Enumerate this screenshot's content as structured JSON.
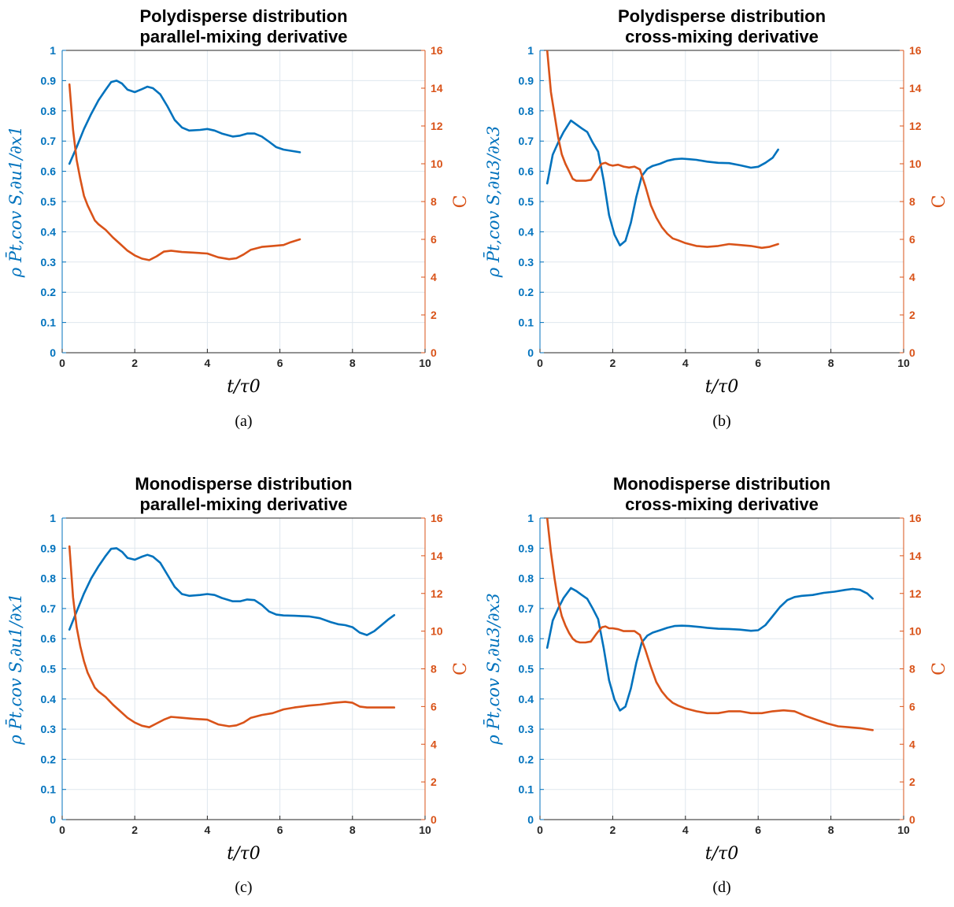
{
  "colors": {
    "left_series": "#0072BD",
    "right_series": "#D95319",
    "grid": "#dfe7ee",
    "axis": "#262626"
  },
  "chart_data": [
    {
      "type": "line",
      "panel_label": "(a)",
      "title": [
        "Polydisperse distribution",
        "parallel-mixing derivative"
      ],
      "xlabel": "t/τ0",
      "ylabel": "ρ P̄t,cov S,∂u1/∂x1",
      "y2label": "C",
      "xlim": [
        0,
        10
      ],
      "ylim": [
        0,
        1
      ],
      "y2lim": [
        0,
        16
      ],
      "xticks": [
        "0",
        "2",
        "4",
        "6",
        "8",
        "10"
      ],
      "yticks": [
        "0",
        "0.1",
        "0.2",
        "0.3",
        "0.4",
        "0.5",
        "0.6",
        "0.7",
        "0.8",
        "0.9",
        "1"
      ],
      "y2ticks": [
        "0",
        "2",
        "4",
        "6",
        "8",
        "10",
        "12",
        "14",
        "16"
      ],
      "grid": true,
      "series": [
        {
          "axis": "left",
          "x": [
            0.2,
            0.4,
            0.6,
            0.8,
            1.0,
            1.2,
            1.35,
            1.5,
            1.65,
            1.8,
            2.0,
            2.2,
            2.35,
            2.5,
            2.7,
            2.9,
            3.1,
            3.3,
            3.5,
            3.8,
            4.0,
            4.2,
            4.4,
            4.7,
            4.9,
            5.1,
            5.3,
            5.5,
            5.7,
            5.9,
            6.1,
            6.3,
            6.55
          ],
          "y": [
            0.625,
            0.68,
            0.74,
            0.79,
            0.835,
            0.87,
            0.895,
            0.9,
            0.89,
            0.87,
            0.862,
            0.872,
            0.88,
            0.875,
            0.855,
            0.815,
            0.77,
            0.745,
            0.735,
            0.737,
            0.74,
            0.735,
            0.725,
            0.715,
            0.718,
            0.725,
            0.725,
            0.715,
            0.698,
            0.68,
            0.672,
            0.668,
            0.663
          ]
        },
        {
          "axis": "right",
          "x": [
            0.2,
            0.3,
            0.4,
            0.5,
            0.6,
            0.7,
            0.8,
            0.9,
            1.0,
            1.2,
            1.4,
            1.6,
            1.8,
            2.0,
            2.2,
            2.4,
            2.6,
            2.8,
            3.0,
            3.3,
            3.6,
            4.0,
            4.3,
            4.6,
            4.8,
            5.0,
            5.2,
            5.5,
            5.8,
            6.1,
            6.3,
            6.55
          ],
          "y": [
            14.2,
            11.8,
            10.2,
            9.2,
            8.3,
            7.8,
            7.4,
            7.0,
            6.8,
            6.5,
            6.1,
            5.75,
            5.4,
            5.15,
            4.98,
            4.9,
            5.1,
            5.35,
            5.4,
            5.33,
            5.3,
            5.25,
            5.05,
            4.95,
            5.0,
            5.2,
            5.45,
            5.6,
            5.65,
            5.7,
            5.85,
            6.0
          ]
        }
      ]
    },
    {
      "type": "line",
      "panel_label": "(b)",
      "title": [
        "Polydisperse distribution",
        "cross-mixing derivative"
      ],
      "xlabel": "t/τ0",
      "ylabel": "ρ P̄t,cov S,∂u3/∂x3",
      "y2label": "C",
      "xlim": [
        0,
        10
      ],
      "ylim": [
        0,
        1
      ],
      "y2lim": [
        0,
        16
      ],
      "xticks": [
        "0",
        "2",
        "4",
        "6",
        "8",
        "10"
      ],
      "yticks": [
        "0",
        "0.1",
        "0.2",
        "0.3",
        "0.4",
        "0.5",
        "0.6",
        "0.7",
        "0.8",
        "0.9",
        "1"
      ],
      "y2ticks": [
        "0",
        "2",
        "4",
        "6",
        "8",
        "10",
        "12",
        "14",
        "16"
      ],
      "grid": true,
      "series": [
        {
          "axis": "left",
          "x": [
            0.2,
            0.35,
            0.5,
            0.65,
            0.85,
            1.0,
            1.15,
            1.3,
            1.45,
            1.6,
            1.75,
            1.9,
            2.05,
            2.2,
            2.35,
            2.5,
            2.65,
            2.8,
            2.95,
            3.1,
            3.3,
            3.5,
            3.7,
            3.9,
            4.1,
            4.3,
            4.6,
            4.9,
            5.2,
            5.5,
            5.8,
            6.0,
            6.2,
            6.4,
            6.55
          ],
          "y": [
            0.56,
            0.655,
            0.695,
            0.73,
            0.768,
            0.755,
            0.742,
            0.73,
            0.695,
            0.665,
            0.57,
            0.455,
            0.39,
            0.355,
            0.37,
            0.43,
            0.515,
            0.585,
            0.608,
            0.618,
            0.625,
            0.635,
            0.64,
            0.642,
            0.64,
            0.638,
            0.632,
            0.628,
            0.627,
            0.62,
            0.612,
            0.615,
            0.628,
            0.645,
            0.672
          ]
        },
        {
          "axis": "right",
          "x": [
            0.2,
            0.3,
            0.4,
            0.5,
            0.6,
            0.7,
            0.8,
            0.9,
            1.0,
            1.1,
            1.25,
            1.4,
            1.55,
            1.7,
            1.8,
            1.9,
            2.0,
            2.15,
            2.3,
            2.45,
            2.6,
            2.75,
            2.9,
            3.05,
            3.2,
            3.35,
            3.5,
            3.65,
            3.8,
            4.0,
            4.3,
            4.6,
            4.9,
            5.2,
            5.5,
            5.8,
            6.1,
            6.3,
            6.55
          ],
          "y": [
            16.0,
            13.8,
            12.6,
            11.4,
            10.5,
            10.0,
            9.6,
            9.2,
            9.1,
            9.1,
            9.1,
            9.15,
            9.6,
            10.0,
            10.05,
            9.95,
            9.9,
            9.95,
            9.85,
            9.8,
            9.85,
            9.7,
            8.8,
            7.8,
            7.15,
            6.65,
            6.3,
            6.05,
            5.95,
            5.8,
            5.65,
            5.6,
            5.65,
            5.75,
            5.7,
            5.65,
            5.55,
            5.6,
            5.75
          ]
        }
      ]
    },
    {
      "type": "line",
      "panel_label": "(c)",
      "title": [
        "Monodisperse distribution",
        "parallel-mixing derivative"
      ],
      "xlabel": "t/τ0",
      "ylabel": "ρ P̄t,cov S,∂u1/∂x1",
      "y2label": "C",
      "xlim": [
        0,
        10
      ],
      "ylim": [
        0,
        1
      ],
      "y2lim": [
        0,
        16
      ],
      "xticks": [
        "0",
        "2",
        "4",
        "6",
        "8",
        "10"
      ],
      "yticks": [
        "0",
        "0.1",
        "0.2",
        "0.3",
        "0.4",
        "0.5",
        "0.6",
        "0.7",
        "0.8",
        "0.9",
        "1"
      ],
      "y2ticks": [
        "0",
        "2",
        "4",
        "6",
        "8",
        "10",
        "12",
        "14",
        "16"
      ],
      "grid": true,
      "series": [
        {
          "axis": "left",
          "x": [
            0.2,
            0.4,
            0.6,
            0.8,
            1.0,
            1.2,
            1.35,
            1.5,
            1.65,
            1.8,
            2.0,
            2.2,
            2.35,
            2.5,
            2.7,
            2.9,
            3.1,
            3.3,
            3.5,
            3.8,
            4.0,
            4.2,
            4.4,
            4.7,
            4.9,
            5.1,
            5.3,
            5.5,
            5.7,
            5.9,
            6.1,
            6.4,
            6.8,
            7.1,
            7.4,
            7.6,
            7.8,
            8.0,
            8.2,
            8.4,
            8.6,
            8.8,
            9.0,
            9.15
          ],
          "y": [
            0.63,
            0.69,
            0.75,
            0.8,
            0.84,
            0.875,
            0.898,
            0.9,
            0.888,
            0.868,
            0.862,
            0.872,
            0.878,
            0.872,
            0.852,
            0.812,
            0.772,
            0.748,
            0.742,
            0.745,
            0.748,
            0.745,
            0.735,
            0.724,
            0.724,
            0.73,
            0.728,
            0.712,
            0.69,
            0.68,
            0.677,
            0.676,
            0.674,
            0.668,
            0.655,
            0.648,
            0.645,
            0.638,
            0.62,
            0.612,
            0.625,
            0.645,
            0.665,
            0.678
          ]
        },
        {
          "axis": "right",
          "x": [
            0.2,
            0.3,
            0.4,
            0.5,
            0.6,
            0.7,
            0.8,
            0.9,
            1.0,
            1.2,
            1.4,
            1.6,
            1.8,
            2.0,
            2.2,
            2.4,
            2.6,
            2.8,
            3.0,
            3.3,
            3.6,
            4.0,
            4.3,
            4.6,
            4.8,
            5.0,
            5.2,
            5.5,
            5.8,
            6.1,
            6.4,
            6.8,
            7.1,
            7.5,
            7.8,
            8.0,
            8.2,
            8.4,
            8.6,
            8.9,
            9.15
          ],
          "y": [
            14.5,
            11.8,
            10.2,
            9.2,
            8.4,
            7.8,
            7.4,
            7.0,
            6.8,
            6.5,
            6.1,
            5.75,
            5.4,
            5.15,
            4.98,
            4.9,
            5.1,
            5.3,
            5.45,
            5.4,
            5.35,
            5.3,
            5.05,
            4.95,
            5.0,
            5.15,
            5.4,
            5.55,
            5.65,
            5.85,
            5.95,
            6.05,
            6.1,
            6.2,
            6.25,
            6.2,
            6.0,
            5.95,
            5.95,
            5.95,
            5.95
          ]
        }
      ]
    },
    {
      "type": "line",
      "panel_label": "(d)",
      "title": [
        "Monodisperse distribution",
        "cross-mixing derivative"
      ],
      "xlabel": "t/τ0",
      "ylabel": "ρ P̄t,cov S,∂u3/∂x3",
      "y2label": "C",
      "xlim": [
        0,
        10
      ],
      "ylim": [
        0,
        1
      ],
      "y2lim": [
        0,
        16
      ],
      "xticks": [
        "0",
        "2",
        "4",
        "6",
        "8",
        "10"
      ],
      "yticks": [
        "0",
        "0.1",
        "0.2",
        "0.3",
        "0.4",
        "0.5",
        "0.6",
        "0.7",
        "0.8",
        "0.9",
        "1"
      ],
      "y2ticks": [
        "0",
        "2",
        "4",
        "6",
        "8",
        "10",
        "12",
        "14",
        "16"
      ],
      "grid": true,
      "series": [
        {
          "axis": "left",
          "x": [
            0.2,
            0.35,
            0.5,
            0.65,
            0.85,
            1.0,
            1.15,
            1.3,
            1.45,
            1.6,
            1.75,
            1.9,
            2.05,
            2.2,
            2.35,
            2.5,
            2.65,
            2.8,
            2.95,
            3.1,
            3.3,
            3.5,
            3.7,
            3.9,
            4.1,
            4.3,
            4.6,
            4.9,
            5.2,
            5.5,
            5.8,
            6.0,
            6.2,
            6.4,
            6.6,
            6.8,
            7.0,
            7.2,
            7.5,
            7.8,
            8.1,
            8.4,
            8.6,
            8.8,
            9.0,
            9.15
          ],
          "y": [
            0.57,
            0.66,
            0.7,
            0.735,
            0.768,
            0.758,
            0.745,
            0.732,
            0.7,
            0.665,
            0.57,
            0.462,
            0.398,
            0.362,
            0.375,
            0.435,
            0.52,
            0.588,
            0.61,
            0.62,
            0.628,
            0.636,
            0.642,
            0.643,
            0.642,
            0.64,
            0.636,
            0.633,
            0.632,
            0.63,
            0.626,
            0.628,
            0.645,
            0.675,
            0.705,
            0.728,
            0.738,
            0.742,
            0.745,
            0.752,
            0.756,
            0.762,
            0.765,
            0.762,
            0.75,
            0.733
          ]
        },
        {
          "axis": "right",
          "x": [
            0.2,
            0.3,
            0.4,
            0.5,
            0.6,
            0.7,
            0.8,
            0.9,
            1.0,
            1.1,
            1.25,
            1.4,
            1.55,
            1.7,
            1.8,
            1.9,
            2.0,
            2.15,
            2.3,
            2.45,
            2.6,
            2.75,
            2.9,
            3.05,
            3.2,
            3.35,
            3.5,
            3.65,
            3.8,
            4.0,
            4.3,
            4.6,
            4.9,
            5.2,
            5.5,
            5.8,
            6.1,
            6.4,
            6.7,
            7.0,
            7.3,
            7.6,
            7.9,
            8.2,
            8.5,
            8.8,
            9.15
          ],
          "y": [
            16.0,
            14.2,
            12.8,
            11.6,
            10.8,
            10.3,
            9.9,
            9.6,
            9.45,
            9.4,
            9.4,
            9.45,
            9.85,
            10.2,
            10.25,
            10.15,
            10.15,
            10.1,
            10.0,
            10.0,
            10.0,
            9.8,
            9.0,
            8.1,
            7.3,
            6.8,
            6.45,
            6.2,
            6.05,
            5.9,
            5.75,
            5.65,
            5.65,
            5.75,
            5.75,
            5.65,
            5.65,
            5.75,
            5.8,
            5.75,
            5.5,
            5.3,
            5.1,
            4.95,
            4.9,
            4.85,
            4.75
          ]
        }
      ]
    }
  ]
}
